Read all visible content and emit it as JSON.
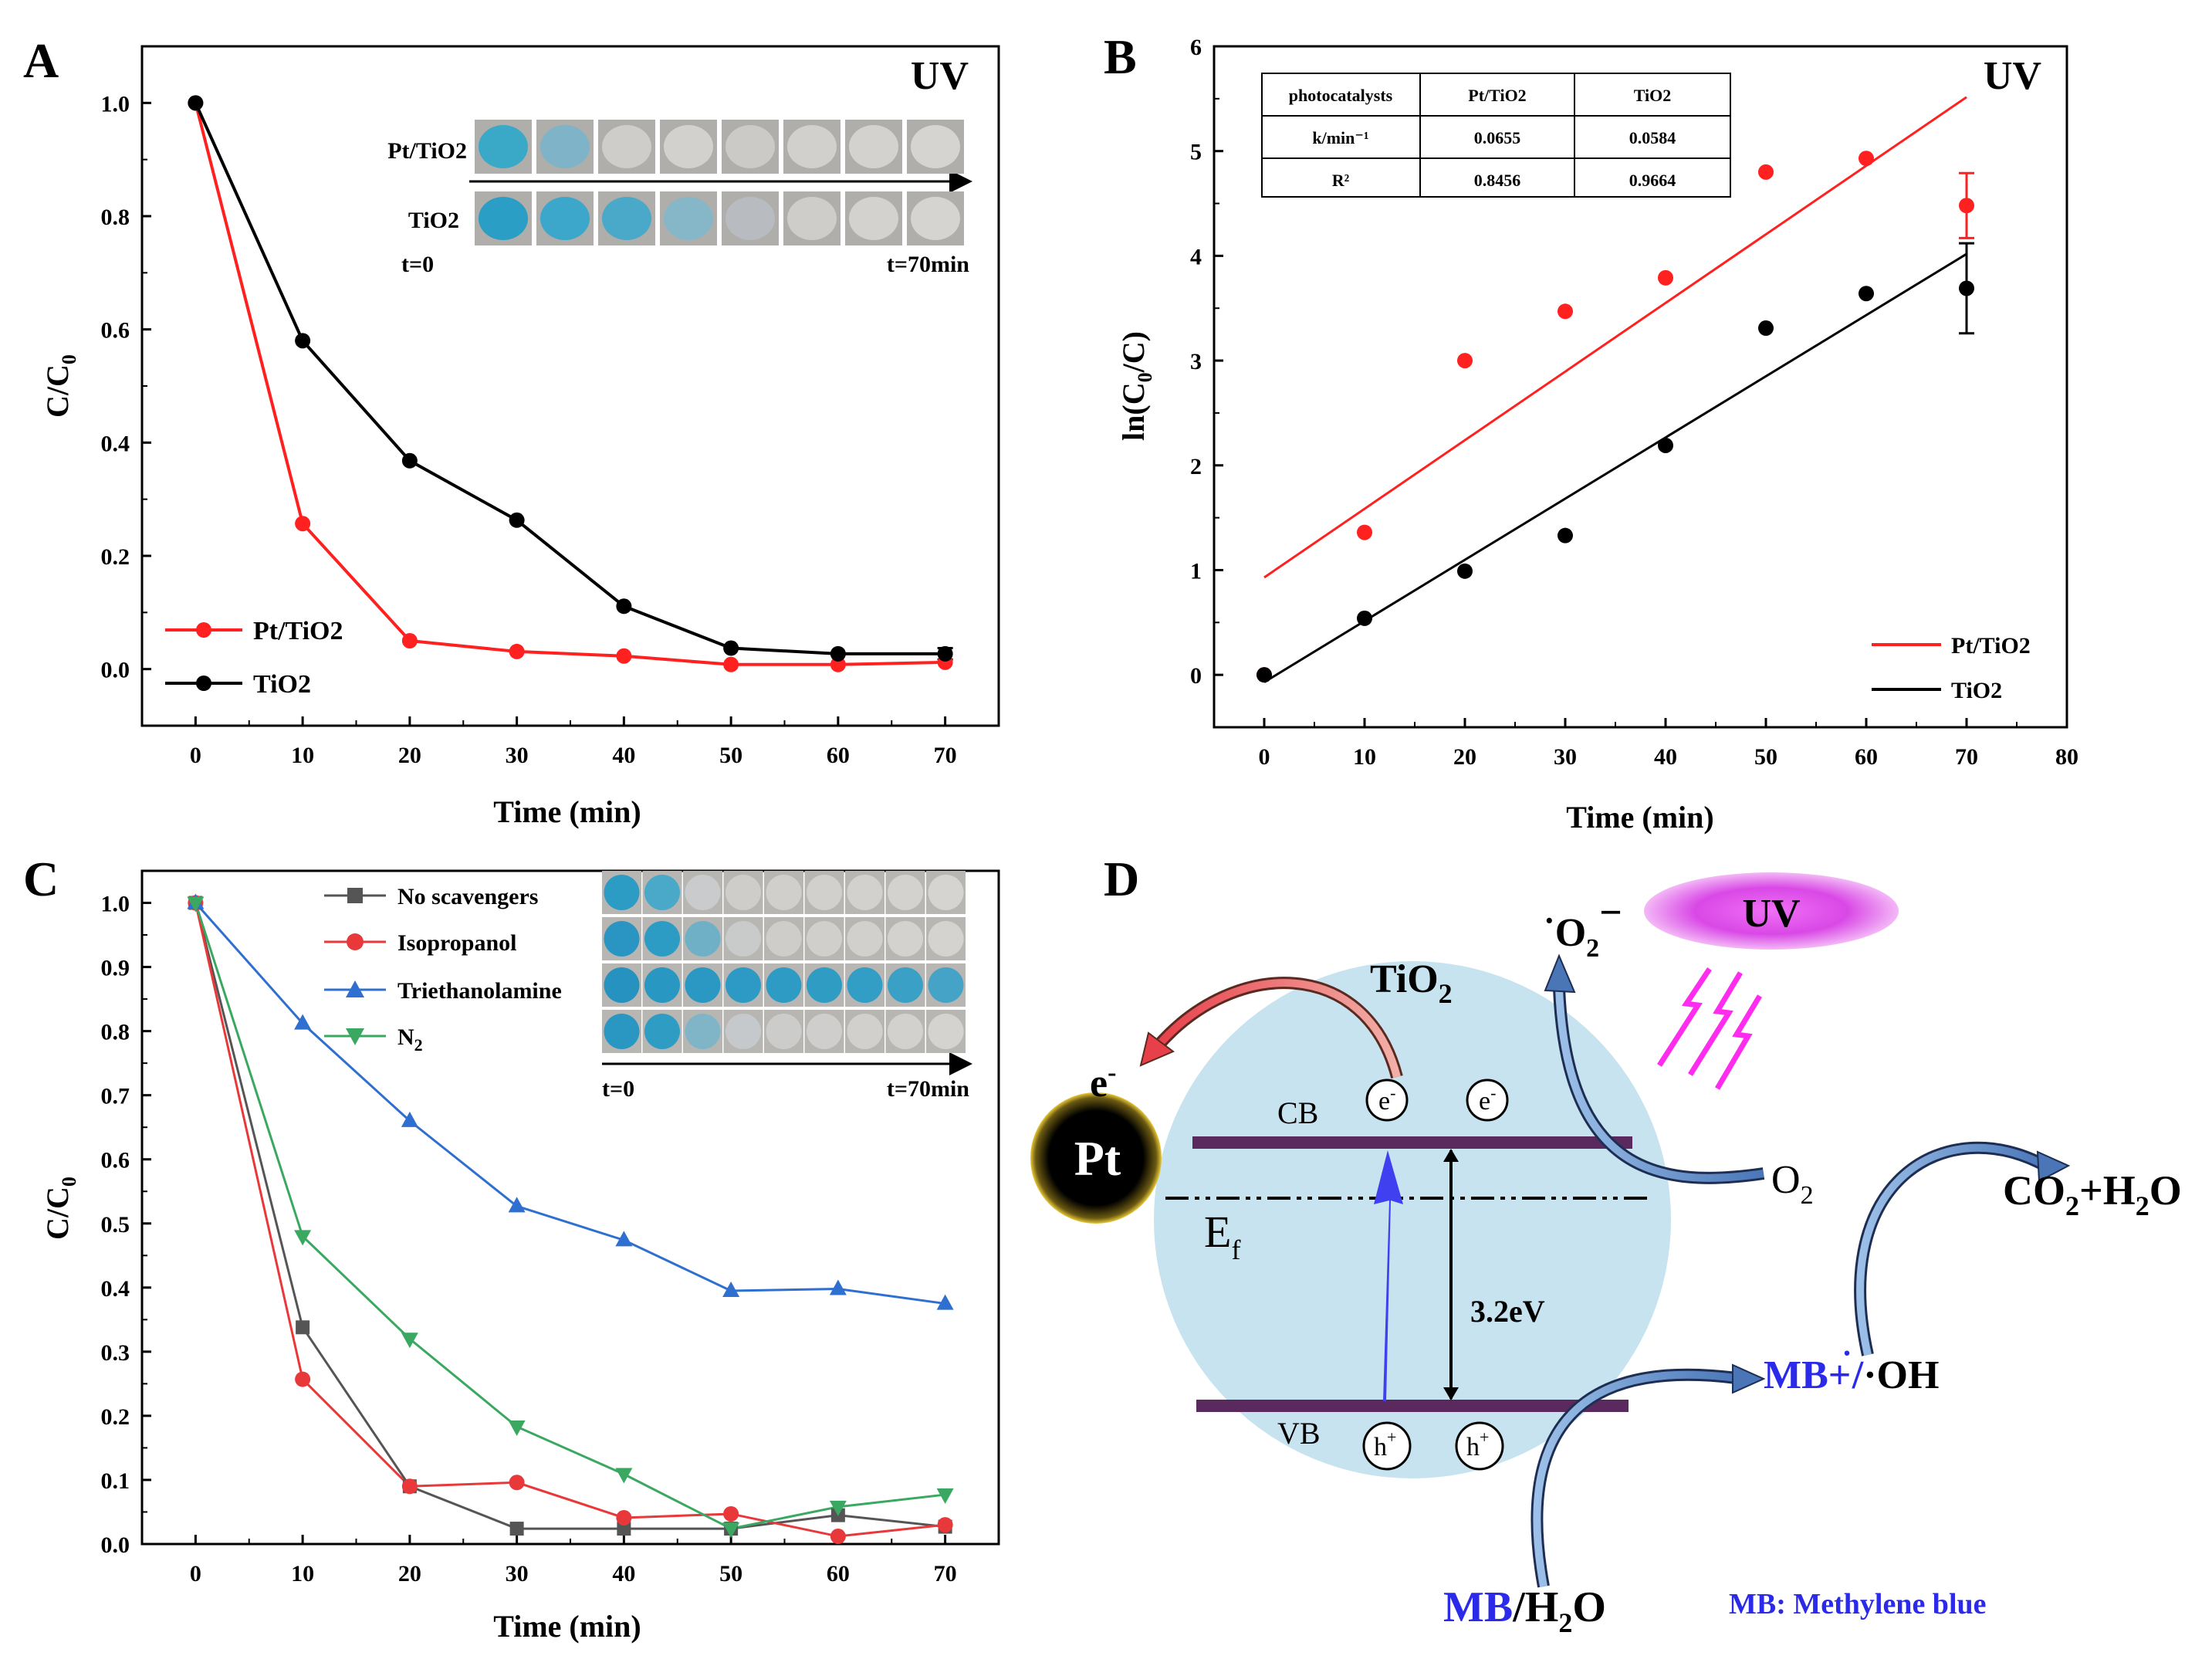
{
  "panels": [
    "A",
    "B",
    "C",
    "D"
  ],
  "chart_data": [
    {
      "id": "A",
      "type": "line",
      "title": "UV",
      "xlabel": "Time (min)",
      "ylabel": "C/C0",
      "xlim": [
        -5,
        75
      ],
      "ylim": [
        -0.1,
        1.1
      ],
      "xticks": [
        0,
        10,
        20,
        30,
        40,
        50,
        60,
        70
      ],
      "yticks": [
        "0.0",
        "0.2",
        "0.4",
        "0.6",
        "0.8",
        "1.0"
      ],
      "x": [
        0,
        10,
        20,
        30,
        40,
        50,
        60,
        70
      ],
      "series": [
        {
          "name": "Pt/TiO2",
          "color": "#ff2020",
          "values": [
            1.0,
            0.257,
            0.05,
            0.031,
            0.023,
            0.008,
            0.008,
            0.012
          ]
        },
        {
          "name": "TiO2",
          "color": "#000000",
          "values": [
            1.0,
            0.58,
            0.368,
            0.263,
            0.111,
            0.037,
            0.027,
            0.027
          ]
        }
      ],
      "error_bars": [
        {
          "series": "TiO2",
          "x": 70,
          "err": 0.01
        }
      ],
      "inset": {
        "row_labels": [
          "Pt/TiO2",
          "TiO2"
        ],
        "start_label": "t=0",
        "end_label": "t=70min",
        "colors": [
          [
            "#3aa9c8",
            "#7fb3c8",
            "#cfcdc9",
            "#d3d1cd",
            "#cccac6",
            "#d2d0cc",
            "#d4d2ce",
            "#d6d4d0"
          ],
          [
            "#2a9ec4",
            "#3ca6cb",
            "#4aa8c8",
            "#86b7c8",
            "#b8bcc0",
            "#cfcdca",
            "#d4d2ce",
            "#d6d4d0"
          ]
        ]
      }
    },
    {
      "id": "B",
      "type": "scatter",
      "title": "UV",
      "xlabel": "Time (min)",
      "ylabel": "ln(C0/C)",
      "xlim": [
        -5,
        80
      ],
      "ylim": [
        -0.5,
        6
      ],
      "xticks": [
        0,
        10,
        20,
        30,
        40,
        50,
        60,
        70,
        80
      ],
      "yticks": [
        0,
        1,
        2,
        3,
        4,
        5,
        6
      ],
      "x": [
        0,
        10,
        20,
        30,
        40,
        50,
        60,
        70
      ],
      "series": [
        {
          "name": "Pt/TiO2",
          "color": "#ff2020",
          "values": [
            0,
            1.36,
            3.0,
            3.47,
            3.79,
            4.8,
            4.93,
            4.48
          ],
          "fit": {
            "slope": 0.0655,
            "intercept": 0.93,
            "x_range": [
              0,
              70
            ]
          }
        },
        {
          "name": "TiO2",
          "color": "#000000",
          "values": [
            0,
            0.54,
            0.99,
            1.33,
            2.19,
            3.31,
            3.64,
            3.69
          ],
          "fit": {
            "slope": 0.0584,
            "intercept": -0.07,
            "x_range": [
              0,
              70
            ]
          }
        }
      ],
      "error_bars": [
        {
          "series": "Pt/TiO2",
          "x": 70,
          "err": 0.31
        },
        {
          "series": "TiO2",
          "x": 70,
          "err": 0.43
        }
      ],
      "table": {
        "headers": [
          "photocatalysts",
          "Pt/TiO2",
          "TiO2"
        ],
        "rows": [
          [
            "k/min⁻¹",
            "0.0655",
            "0.0584"
          ],
          [
            "R²",
            "0.8456",
            "0.9664"
          ]
        ]
      }
    },
    {
      "id": "C",
      "type": "line",
      "xlabel": "Time (min)",
      "ylabel": "C/C0",
      "xlim": [
        -5,
        75
      ],
      "ylim": [
        0,
        1.05
      ],
      "xticks": [
        0,
        10,
        20,
        30,
        40,
        50,
        60,
        70
      ],
      "yticks": [
        "0.0",
        "0.1",
        "0.2",
        "0.3",
        "0.4",
        "0.5",
        "0.6",
        "0.7",
        "0.8",
        "0.9",
        "1.0"
      ],
      "x": [
        0,
        10,
        20,
        30,
        40,
        50,
        60,
        70
      ],
      "series": [
        {
          "name": "No scavengers",
          "color": "#555555",
          "marker": "square",
          "values": [
            1.0,
            0.338,
            0.09,
            0.024,
            0.024,
            0.024,
            0.045,
            0.027
          ]
        },
        {
          "name": "Isopropanol",
          "color": "#e8383a",
          "marker": "circle",
          "values": [
            1.0,
            0.257,
            0.09,
            0.096,
            0.041,
            0.047,
            0.012,
            0.03
          ]
        },
        {
          "name": "Triethanolamine",
          "color": "#2f6fcf",
          "marker": "triangle-up",
          "values": [
            1.0,
            0.812,
            0.66,
            0.527,
            0.474,
            0.395,
            0.398,
            0.375
          ]
        },
        {
          "name": "N2",
          "color": "#3aa860",
          "marker": "triangle-down",
          "values": [
            1.0,
            0.48,
            0.32,
            0.183,
            0.109,
            0.024,
            0.058,
            0.077
          ]
        }
      ],
      "inset": {
        "start_label": "t=0",
        "end_label": "t=70min",
        "colors": [
          [
            "#2d9cc4",
            "#4aa8c8",
            "#c9cbcc",
            "#cfcdca",
            "#d1cfcc",
            "#d2d0cc",
            "#d3d1ce",
            "#d4d2ce",
            "#d6d4d0"
          ],
          [
            "#2a95c2",
            "#2d9cc4",
            "#6fb0c6",
            "#c9cbcb",
            "#cfcdca",
            "#d1cfcc",
            "#d2d0cd",
            "#d4d2ce",
            "#d5d3cf"
          ],
          [
            "#2592c0",
            "#2897c2",
            "#2a98c3",
            "#2c9ac4",
            "#2e9bc4",
            "#2f9cc4",
            "#329dc5",
            "#3aa0c6",
            "#45a3c7"
          ],
          [
            "#2a96c2",
            "#2f9cc4",
            "#7fb5c7",
            "#c6c9cb",
            "#cccccb",
            "#d0cecc",
            "#d2d0cc",
            "#d3d1ce",
            "#d5d3cf"
          ]
        ]
      }
    }
  ],
  "diagram": {
    "uv_label": "UV",
    "tio2_label": "TiO",
    "tio2_sub": "2",
    "pt_label": "Pt",
    "e_out": "e",
    "e_out_sup": "-",
    "cb_label": "CB",
    "vb_label": "VB",
    "ef_label": "E",
    "ef_sub": "f",
    "gap_label": "3.2eV",
    "electron": "e",
    "electron_sup": "-",
    "hole": "h",
    "hole_sup": "+",
    "superoxide_dot": "·",
    "superoxide": "O",
    "superoxide_sub": "2",
    "superoxide_sup": "−",
    "o2": "O",
    "o2_sub": "2",
    "products": "CO",
    "products_sub": "2",
    "products_rest": "+H",
    "products_sub2": "2",
    "products_rest2": "O",
    "mb_radical": "MB+",
    "mb_radical_dot": "·",
    "mb_sep": "/",
    "oh": "·OH",
    "mb_h2o_a": "MB",
    "mb_h2o_b": "/H",
    "mb_h2o_sub": "2",
    "mb_h2o_c": "O",
    "mb_note": "MB: Methylene blue"
  }
}
